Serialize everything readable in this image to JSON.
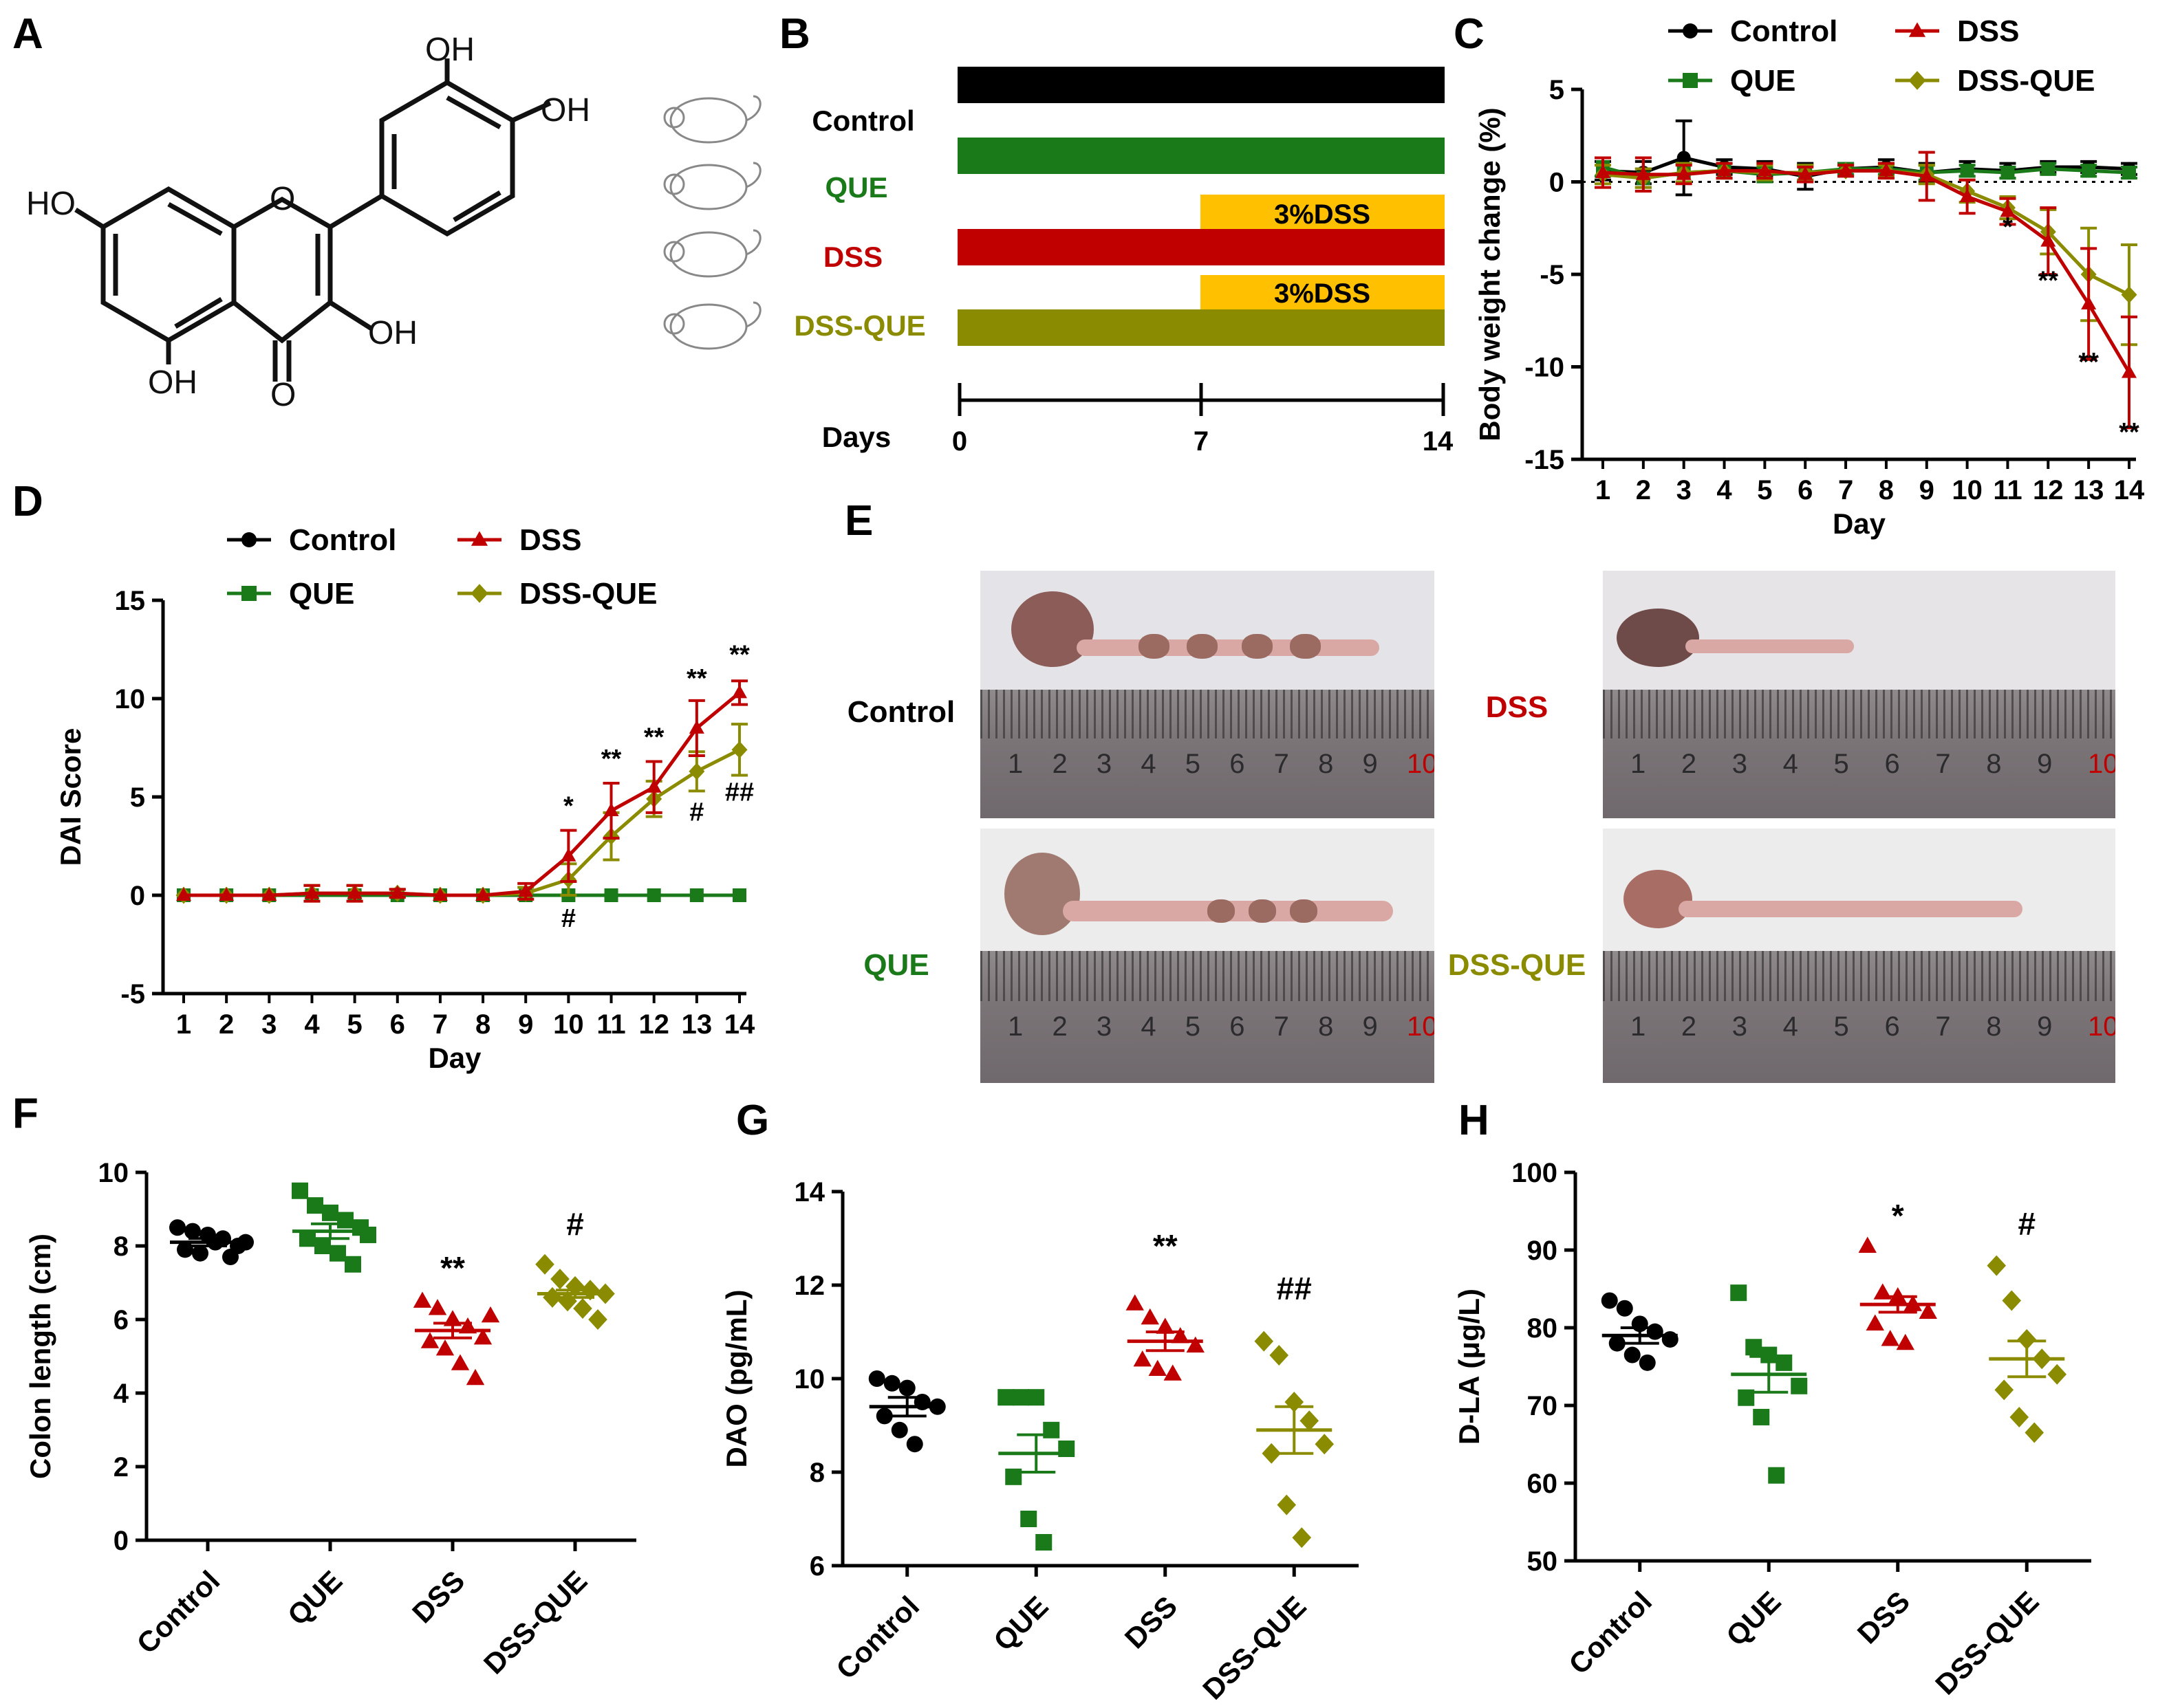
{
  "colors": {
    "control": "#000000",
    "que": "#1a7a1a",
    "dss": "#c00000",
    "dssque": "#8b8b00",
    "dss_bar": "#ffc000"
  },
  "panels": {
    "A": {
      "letter": "A",
      "atoms": {
        "oh1": "OH",
        "oh2": "OH",
        "ho": "HO",
        "o_ring": "O",
        "oh3": "OH",
        "oh4": "OH",
        "o_carbonyl": "O"
      }
    },
    "B": {
      "letter": "B",
      "groups": [
        "Control",
        "QUE",
        "DSS",
        "DSS-QUE"
      ],
      "dss_label": "3%DSS",
      "axis_label": "Days",
      "ticks": [
        "0",
        "7",
        "14"
      ]
    },
    "C": {
      "letter": "C"
    },
    "D": {
      "letter": "D"
    },
    "E": {
      "letter": "E",
      "labels": [
        "Control",
        "DSS",
        "QUE",
        "DSS-QUE"
      ],
      "ruler_numbers": [
        "1",
        "2",
        "3",
        "4",
        "5",
        "6",
        "7",
        "8",
        "9",
        "10"
      ]
    },
    "F": {
      "letter": "F"
    },
    "G": {
      "letter": "G"
    },
    "H": {
      "letter": "H"
    }
  },
  "chart_data": [
    {
      "panel": "C",
      "type": "line",
      "xlabel": "Day",
      "ylabel": "Body weight change (%)",
      "x": [
        1,
        2,
        3,
        4,
        5,
        6,
        7,
        8,
        9,
        10,
        11,
        12,
        13,
        14
      ],
      "ylim": [
        -15,
        5
      ],
      "yticks": [
        5,
        0,
        -5,
        -10,
        -15
      ],
      "series": [
        {
          "name": "Control",
          "values": [
            0.6,
            0.5,
            1.3,
            0.8,
            0.7,
            0.3,
            0.7,
            0.8,
            0.5,
            0.7,
            0.6,
            0.8,
            0.8,
            0.7
          ],
          "err": [
            0.5,
            0.6,
            2.0,
            0.4,
            0.4,
            0.7,
            0.3,
            0.4,
            0.5,
            0.4,
            0.4,
            0.3,
            0.3,
            0.3
          ]
        },
        {
          "name": "QUE",
          "values": [
            0.8,
            0.2,
            0.5,
            0.6,
            0.4,
            0.5,
            0.7,
            0.7,
            0.5,
            0.6,
            0.5,
            0.7,
            0.6,
            0.5
          ],
          "err": [
            0.5,
            0.5,
            0.5,
            0.4,
            0.4,
            0.4,
            0.3,
            0.3,
            0.4,
            0.3,
            0.3,
            0.3,
            0.3,
            0.3
          ]
        },
        {
          "name": "DSS",
          "values": [
            0.5,
            0.4,
            0.4,
            0.6,
            0.6,
            0.4,
            0.6,
            0.6,
            0.3,
            -0.8,
            -1.6,
            -3.2,
            -6.6,
            -10.3
          ],
          "err": [
            0.8,
            0.9,
            0.5,
            0.4,
            0.4,
            0.4,
            0.3,
            0.4,
            1.3,
            0.9,
            0.7,
            1.8,
            3.0,
            3.0
          ]
        },
        {
          "name": "DSS-QUE",
          "values": [
            0.4,
            0.2,
            0.5,
            0.6,
            0.5,
            0.5,
            0.6,
            0.6,
            0.4,
            -0.5,
            -1.4,
            -2.7,
            -5.0,
            -6.1
          ],
          "err": [
            0.5,
            0.5,
            0.5,
            0.4,
            0.4,
            0.4,
            0.3,
            0.3,
            0.5,
            0.6,
            0.6,
            1.2,
            2.5,
            2.7
          ]
        }
      ],
      "annotations": [
        {
          "x": 11,
          "y": -2.9,
          "text": "*"
        },
        {
          "x": 12,
          "y": -5.8,
          "text": "**"
        },
        {
          "x": 13,
          "y": -10.2,
          "text": "**"
        },
        {
          "x": 14,
          "y": -14.0,
          "text": "**"
        }
      ],
      "legend": "top",
      "legend_labels": [
        "Control",
        "DSS",
        "QUE",
        "DSS-QUE"
      ]
    },
    {
      "panel": "D",
      "type": "line",
      "xlabel": "Day",
      "ylabel": "DAI Score",
      "x": [
        1,
        2,
        3,
        4,
        5,
        6,
        7,
        8,
        9,
        10,
        11,
        12,
        13,
        14
      ],
      "ylim": [
        -5,
        15
      ],
      "yticks": [
        15,
        10,
        5,
        0,
        -5
      ],
      "series": [
        {
          "name": "Control",
          "values": [
            0,
            0,
            0,
            0,
            0,
            0,
            0,
            0,
            0,
            0,
            0,
            0,
            0,
            0
          ],
          "err": [
            0,
            0,
            0,
            0,
            0,
            0,
            0,
            0,
            0,
            0,
            0,
            0,
            0,
            0
          ]
        },
        {
          "name": "QUE",
          "values": [
            0,
            0,
            0,
            0,
            0,
            0,
            0,
            0,
            0,
            0,
            0,
            0,
            0,
            0
          ],
          "err": [
            0,
            0,
            0,
            0,
            0,
            0,
            0,
            0,
            0,
            0,
            0,
            0,
            0,
            0
          ]
        },
        {
          "name": "DSS",
          "values": [
            0,
            0,
            0,
            0.1,
            0.1,
            0.1,
            0,
            0,
            0.2,
            2.0,
            4.3,
            5.5,
            8.5,
            10.3
          ],
          "err": [
            0,
            0,
            0,
            0.4,
            0.4,
            0.2,
            0,
            0,
            0.4,
            1.3,
            1.4,
            1.3,
            1.4,
            0.6
          ]
        },
        {
          "name": "DSS-QUE",
          "values": [
            0,
            0,
            0,
            0.1,
            0.1,
            0.1,
            0,
            0,
            0.1,
            0.8,
            3.0,
            4.9,
            6.3,
            7.4
          ],
          "err": [
            0,
            0,
            0,
            0.4,
            0.4,
            0.2,
            0,
            0,
            0.3,
            0.8,
            1.2,
            0.9,
            1.0,
            1.3
          ]
        }
      ],
      "annotations": [
        {
          "x": 10,
          "y": 4.1,
          "text": "*"
        },
        {
          "x": 11,
          "y": 6.5,
          "text": "**"
        },
        {
          "x": 12,
          "y": 7.6,
          "text": "**"
        },
        {
          "x": 13,
          "y": 10.6,
          "text": "**"
        },
        {
          "x": 14,
          "y": 11.8,
          "text": "**"
        },
        {
          "x": 13,
          "y": 3.8,
          "text": "#"
        },
        {
          "x": 14,
          "y": 4.8,
          "text": "##"
        },
        {
          "x": 10,
          "y": -1.6,
          "text": "#"
        }
      ],
      "legend": "top",
      "legend_labels": [
        "Control",
        "DSS",
        "QUE",
        "DSS-QUE"
      ]
    },
    {
      "panel": "F",
      "type": "scatter",
      "ylabel": "Colon length (cm)",
      "categories": [
        "Control",
        "QUE",
        "DSS",
        "DSS-QUE"
      ],
      "ylim": [
        0,
        10
      ],
      "yticks": [
        10,
        8,
        6,
        4,
        2,
        0
      ],
      "groups": [
        {
          "name": "Control",
          "mean": 8.1,
          "sem": 0.1,
          "values": [
            8.5,
            8.4,
            8.3,
            8.2,
            8.0,
            7.9,
            7.8,
            8.1,
            7.7,
            8.1
          ]
        },
        {
          "name": "QUE",
          "mean": 8.4,
          "sem": 0.2,
          "values": [
            9.5,
            9.1,
            8.9,
            8.7,
            8.5,
            8.2,
            8.0,
            7.8,
            7.5,
            8.3
          ]
        },
        {
          "name": "DSS",
          "mean": 5.7,
          "sem": 0.2,
          "values": [
            6.5,
            6.3,
            6.0,
            5.8,
            5.5,
            5.4,
            5.2,
            4.8,
            4.4,
            6.1
          ]
        },
        {
          "name": "DSS-QUE",
          "mean": 6.7,
          "sem": 0.1,
          "values": [
            7.5,
            7.1,
            6.9,
            6.8,
            6.7,
            6.6,
            6.5,
            6.3,
            6.0
          ]
        }
      ],
      "annotations": [
        {
          "category": "DSS",
          "y": 7.1,
          "text": "**"
        },
        {
          "category": "DSS-QUE",
          "y": 8.3,
          "text": "#"
        }
      ]
    },
    {
      "panel": "G",
      "type": "scatter",
      "ylabel": "DAO (pg/mL)",
      "categories": [
        "Control",
        "QUE",
        "DSS",
        "DSS-QUE"
      ],
      "ylim": [
        6,
        14
      ],
      "yticks": [
        14,
        12,
        10,
        8,
        6
      ],
      "groups": [
        {
          "name": "Control",
          "mean": 9.4,
          "sem": 0.2,
          "values": [
            10.0,
            9.9,
            9.8,
            9.5,
            9.4,
            9.2,
            8.9,
            8.6
          ]
        },
        {
          "name": "QUE",
          "mean": 8.4,
          "sem": 0.4,
          "values": [
            9.6,
            9.6,
            9.6,
            8.9,
            8.5,
            7.9,
            7.0,
            6.5
          ]
        },
        {
          "name": "DSS",
          "mean": 10.8,
          "sem": 0.2,
          "values": [
            11.6,
            11.3,
            11.1,
            10.9,
            10.7,
            10.4,
            10.2,
            10.1
          ]
        },
        {
          "name": "DSS-QUE",
          "mean": 8.9,
          "sem": 0.5,
          "values": [
            10.8,
            10.5,
            9.5,
            9.1,
            8.6,
            8.4,
            7.3,
            6.6
          ]
        }
      ],
      "annotations": [
        {
          "category": "DSS",
          "y": 12.6,
          "text": "**"
        },
        {
          "category": "DSS-QUE",
          "y": 11.7,
          "text": "##"
        }
      ]
    },
    {
      "panel": "H",
      "type": "scatter",
      "ylabel": "D-LA (μg/L)",
      "categories": [
        "Control",
        "QUE",
        "DSS",
        "DSS-QUE"
      ],
      "ylim": [
        50,
        100
      ],
      "yticks": [
        100,
        90,
        80,
        70,
        60,
        50
      ],
      "groups": [
        {
          "name": "Control",
          "mean": 79,
          "sem": 1.0,
          "values": [
            83.5,
            82.5,
            80.5,
            79.5,
            78.5,
            78.0,
            76.5,
            75.5
          ]
        },
        {
          "name": "QUE",
          "mean": 74,
          "sem": 2.3,
          "values": [
            84.5,
            77.5,
            76.5,
            75.5,
            72.5,
            71.0,
            68.5,
            61.0
          ]
        },
        {
          "name": "DSS",
          "mean": 83,
          "sem": 1.0,
          "values": [
            90.5,
            84.5,
            84.0,
            83.0,
            82.0,
            80.5,
            78.5,
            78.0
          ]
        },
        {
          "name": "DSS-QUE",
          "mean": 76,
          "sem": 2.3,
          "values": [
            88.0,
            83.5,
            78.5,
            76.0,
            74.0,
            72.0,
            68.5,
            66.5
          ]
        }
      ],
      "annotations": [
        {
          "category": "DSS",
          "y": 93.0,
          "text": "*"
        },
        {
          "category": "DSS-QUE",
          "y": 92.0,
          "text": "#"
        }
      ]
    }
  ]
}
